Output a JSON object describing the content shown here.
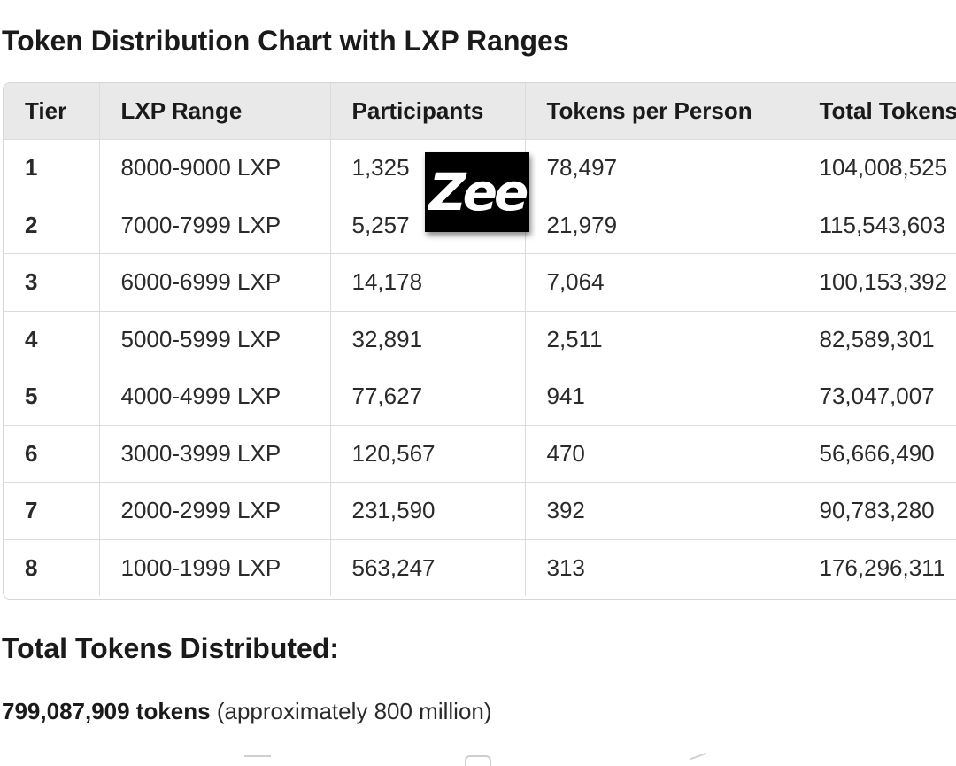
{
  "title": "Token Distribution Chart with LXP Ranges",
  "watermark": "Zee",
  "table": {
    "headers": [
      "Tier",
      "LXP Range",
      "Participants",
      "Tokens per Person",
      "Total Tokens"
    ],
    "rows": [
      [
        "1",
        "8000-9000 LXP",
        "1,325",
        "78,497",
        "104,008,525"
      ],
      [
        "2",
        "7000-7999 LXP",
        "5,257",
        "21,979",
        "115,543,603"
      ],
      [
        "3",
        "6000-6999 LXP",
        "14,178",
        "7,064",
        "100,153,392"
      ],
      [
        "4",
        "5000-5999 LXP",
        "32,891",
        "2,511",
        "82,589,301"
      ],
      [
        "5",
        "4000-4999 LXP",
        "77,627",
        "941",
        "73,047,007"
      ],
      [
        "6",
        "3000-3999 LXP",
        "120,567",
        "470",
        "56,666,490"
      ],
      [
        "7",
        "2000-2999 LXP",
        "231,590",
        "392",
        "90,783,280"
      ],
      [
        "8",
        "1000-1999 LXP",
        "563,247",
        "313",
        "176,296,311"
      ]
    ]
  },
  "summary": {
    "heading": "Total Tokens Distributed:",
    "total": "799,087,909 tokens",
    "note": " (approximately 800 million)"
  }
}
